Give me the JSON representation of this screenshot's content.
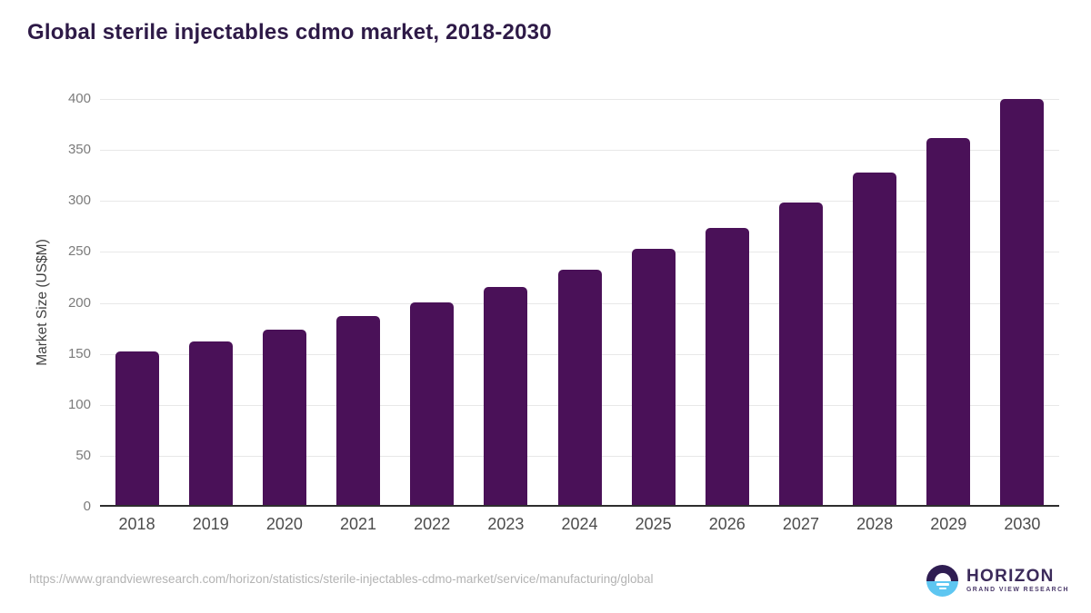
{
  "title": "Global sterile injectables cdmo market, 2018-2030",
  "chart_data": {
    "type": "bar",
    "title": "Global sterile injectables cdmo market, 2018-2030",
    "categories": [
      "2018",
      "2019",
      "2020",
      "2021",
      "2022",
      "2023",
      "2024",
      "2025",
      "2026",
      "2027",
      "2028",
      "2029",
      "2030"
    ],
    "values": [
      151,
      160,
      172,
      185,
      199,
      214,
      231,
      251,
      272,
      297,
      326,
      360,
      398
    ],
    "xlabel": "",
    "ylabel": "Market Size (US$M)",
    "ylim": [
      0,
      400
    ],
    "yticks": [
      0,
      50,
      100,
      150,
      200,
      250,
      300,
      350,
      400
    ],
    "grid": "horizontal",
    "legend": "none",
    "bar_color": "#4a1158"
  },
  "footer": {
    "source_url": "https://www.grandviewresearch.com/horizon/statistics/sterile-injectables-cdmo-market/service/manufacturing/global",
    "logo": {
      "name": "HORIZON",
      "subtitle": "GRAND VIEW RESEARCH"
    }
  },
  "colors": {
    "bar": "#4a1158",
    "title_text": "#2e1a47",
    "logo_purple": "#2f1d52",
    "logo_blue": "#5ec6f1",
    "gridline": "#e8e8e8",
    "axis_line": "#2e2e2e",
    "url_text": "#b3b3b3"
  }
}
